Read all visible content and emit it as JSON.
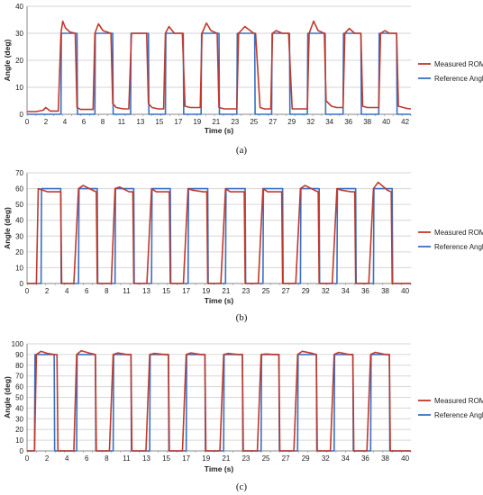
{
  "chart_data": [
    {
      "type": "line",
      "panel_label": "(a)",
      "xlabel": "Time (s)",
      "ylabel": "Angle (deg)",
      "xlim": [
        0,
        43
      ],
      "ylim": [
        0,
        40
      ],
      "x_ticks": [
        "0",
        "2",
        "4",
        "6",
        "8",
        "11",
        "13",
        "15",
        "17",
        "19",
        "21",
        "23",
        "25",
        "27",
        "29",
        "32",
        "34",
        "36",
        "38",
        "40",
        "42"
      ],
      "y_ticks": [
        "0",
        "10",
        "20",
        "30",
        "40"
      ],
      "grid": true,
      "legend_position": "right",
      "series": [
        {
          "name": "Measured ROM",
          "color": "#c0392b",
          "x": [
            0,
            1.0,
            1.8,
            2.1,
            2.6,
            3.5,
            3.8,
            4.0,
            4.3,
            4.8,
            5.4,
            5.6,
            6.0,
            6.5,
            7.4,
            7.6,
            8.0,
            8.5,
            9.4,
            9.6,
            10.0,
            10.8,
            11.4,
            11.7,
            12.2,
            13.4,
            13.6,
            14.0,
            14.7,
            15.3,
            15.5,
            15.9,
            16.5,
            17.4,
            17.7,
            18.3,
            19.4,
            19.6,
            20.1,
            20.6,
            21.3,
            21.5,
            22.1,
            22.6,
            23.5,
            23.7,
            24.4,
            25.4,
            25.6,
            26.1,
            26.6,
            27.3,
            27.5,
            27.9,
            28.6,
            29.3,
            29.7,
            30.2,
            31.4,
            31.6,
            32.1,
            32.6,
            33.3,
            33.5,
            34.1,
            34.7,
            35.4,
            35.6,
            36.1,
            36.7,
            37.4,
            37.6,
            38.1,
            38.7,
            39.4,
            39.6,
            40.1,
            40.6,
            41.4,
            41.6,
            42.5,
            43.0
          ],
          "y": [
            1,
            1,
            1.5,
            2.5,
            1.2,
            1.2,
            30,
            34.5,
            32,
            30.5,
            30,
            2.5,
            1.8,
            1.8,
            1.8,
            30,
            33.5,
            31,
            30,
            4,
            2.5,
            2,
            2,
            30,
            30,
            30,
            4,
            2.5,
            2,
            2,
            30,
            32.5,
            30,
            30,
            3,
            2.5,
            2.5,
            30,
            33.8,
            31,
            30,
            2.5,
            2,
            2,
            2,
            30,
            32.5,
            30,
            30,
            2.5,
            2,
            2,
            30,
            31,
            30,
            30,
            2,
            2,
            2,
            30,
            34.5,
            31,
            30,
            5,
            3,
            2.5,
            2.5,
            30,
            31.8,
            30,
            30,
            3,
            2.5,
            2.5,
            2.5,
            30,
            31,
            30,
            30,
            3,
            2.2,
            2
          ]
        },
        {
          "name": "Reference Angle",
          "color": "#3a6fc4",
          "x": [
            0,
            3.8,
            3.85,
            5.6,
            5.65,
            7.6,
            7.65,
            9.6,
            9.65,
            11.6,
            11.65,
            13.6,
            13.65,
            15.5,
            15.55,
            17.5,
            17.55,
            19.5,
            19.55,
            21.5,
            21.55,
            23.5,
            23.55,
            25.5,
            25.55,
            27.4,
            27.45,
            29.4,
            29.45,
            31.4,
            31.45,
            33.4,
            33.45,
            35.4,
            35.45,
            37.4,
            37.45,
            39.4,
            39.45,
            41.4,
            41.45,
            43.0
          ],
          "y": [
            0,
            0,
            30,
            30,
            0,
            0,
            30,
            30,
            0,
            0,
            30,
            30,
            0,
            0,
            30,
            30,
            0,
            0,
            30,
            30,
            0,
            0,
            30,
            30,
            0,
            0,
            30,
            30,
            0,
            0,
            30,
            30,
            0,
            0,
            30,
            30,
            0,
            0,
            30,
            30,
            0,
            0
          ]
        }
      ]
    },
    {
      "type": "line",
      "panel_label": "(b)",
      "xlabel": "Time (s)",
      "ylabel": "Angle (deg)",
      "xlim": [
        0,
        41
      ],
      "ylim": [
        0,
        70
      ],
      "x_ticks": [
        "0",
        "2",
        "4",
        "6",
        "8",
        "11",
        "13",
        "15",
        "17",
        "19",
        "21",
        "23",
        "25",
        "27",
        "29",
        "32",
        "34",
        "36",
        "38",
        "40"
      ],
      "y_ticks": [
        "0",
        "10",
        "20",
        "30",
        "40",
        "50",
        "60",
        "70"
      ],
      "grid": true,
      "legend_position": "right",
      "series": [
        {
          "name": "Measured ROM",
          "color": "#c0392b",
          "x": [
            0,
            1.0,
            1.2,
            1.7,
            2.2,
            3.0,
            3.6,
            3.7,
            5.0,
            5.5,
            6.0,
            7.0,
            7.4,
            7.5,
            9.0,
            9.4,
            9.9,
            10.9,
            11.3,
            11.4,
            12.8,
            13.3,
            13.8,
            14.8,
            15.2,
            15.3,
            16.7,
            17.2,
            17.7,
            18.8,
            19.2,
            19.3,
            20.7,
            21.2,
            21.7,
            22.8,
            23.2,
            23.3,
            24.7,
            25.2,
            25.7,
            26.8,
            27.2,
            27.3,
            28.7,
            29.2,
            29.7,
            30.7,
            31.1,
            31.2,
            32.6,
            33.1,
            33.6,
            34.6,
            35.0,
            35.1,
            36.5,
            37.0,
            37.5,
            38.5,
            38.9,
            39.0,
            40.4,
            41.0
          ],
          "y": [
            0,
            0,
            60,
            59,
            58,
            58,
            58,
            0,
            0,
            60,
            62,
            59,
            58,
            0,
            0,
            60,
            61,
            58,
            58,
            0,
            0,
            60,
            58,
            58,
            58,
            0,
            0,
            60,
            59,
            58,
            58,
            0,
            0,
            60,
            58,
            58,
            58,
            0,
            0,
            60,
            58,
            58,
            58,
            0,
            0,
            60,
            62,
            59,
            58,
            0,
            0,
            60,
            59,
            58,
            58,
            0,
            0,
            60,
            64,
            59,
            58,
            0,
            0,
            0
          ]
        },
        {
          "name": "Reference Angle",
          "color": "#3a6fc4",
          "x": [
            0,
            1.5,
            1.55,
            3.6,
            3.65,
            5.5,
            5.55,
            7.5,
            7.55,
            9.4,
            9.45,
            11.4,
            11.45,
            13.3,
            13.35,
            15.3,
            15.35,
            17.2,
            17.25,
            19.3,
            19.35,
            21.2,
            21.25,
            23.3,
            23.35,
            25.2,
            25.25,
            27.3,
            27.35,
            29.2,
            29.25,
            31.2,
            31.25,
            33.1,
            33.15,
            35.1,
            35.15,
            37.0,
            37.05,
            39.0,
            39.05,
            41.0
          ],
          "y": [
            0,
            0,
            60,
            60,
            0,
            0,
            60,
            60,
            0,
            0,
            60,
            60,
            0,
            0,
            60,
            60,
            0,
            0,
            60,
            60,
            0,
            0,
            60,
            60,
            0,
            0,
            60,
            60,
            0,
            0,
            60,
            60,
            0,
            0,
            60,
            60,
            0,
            0,
            60,
            60,
            0,
            0
          ]
        }
      ]
    },
    {
      "type": "line",
      "panel_label": "(c)",
      "xlabel": "Time (s)",
      "ylabel": "Angle (deg)",
      "xlim": [
        0,
        41
      ],
      "ylim": [
        0,
        100
      ],
      "x_ticks": [
        "0",
        "2",
        "4",
        "6",
        "8",
        "11",
        "13",
        "15",
        "17",
        "19",
        "21",
        "23",
        "25",
        "27",
        "29",
        "32",
        "34",
        "36",
        "38",
        "40"
      ],
      "y_ticks": [
        "0",
        "10",
        "20",
        "30",
        "40",
        "50",
        "60",
        "70",
        "80",
        "90",
        "100"
      ],
      "grid": true,
      "legend_position": "right",
      "series": [
        {
          "name": "Measured ROM",
          "color": "#c0392b",
          "x": [
            0,
            0.8,
            1.0,
            1.5,
            2.2,
            2.9,
            3.2,
            3.3,
            5.0,
            5.3,
            5.8,
            6.8,
            7.3,
            7.4,
            8.8,
            9.2,
            9.7,
            10.7,
            11.1,
            11.2,
            12.7,
            13.1,
            13.6,
            14.7,
            15.1,
            15.2,
            16.6,
            17.0,
            17.5,
            18.6,
            19.0,
            19.1,
            20.6,
            21.0,
            21.5,
            22.6,
            23.0,
            23.1,
            24.6,
            25.0,
            25.5,
            26.5,
            26.9,
            27.0,
            28.5,
            28.9,
            29.4,
            30.5,
            30.9,
            31.0,
            32.4,
            32.8,
            33.3,
            34.4,
            34.8,
            34.9,
            36.3,
            36.7,
            37.2,
            38.3,
            38.7,
            38.8,
            40.2,
            41.0
          ],
          "y": [
            0,
            0,
            90,
            93,
            91,
            90,
            90,
            0,
            0,
            90,
            93.5,
            91,
            90,
            0,
            0,
            90,
            91.5,
            90,
            90,
            0,
            0,
            90,
            91,
            90,
            90,
            0,
            0,
            90,
            91.5,
            90,
            90,
            0,
            0,
            90,
            91,
            90,
            90,
            0,
            0,
            90,
            90.5,
            90,
            90,
            0,
            0,
            90,
            93,
            91,
            90,
            0,
            0,
            90,
            92,
            90,
            90,
            0,
            0,
            90,
            92,
            90,
            90,
            0,
            0,
            0
          ]
        },
        {
          "name": "Reference Angle",
          "color": "#3a6fc4",
          "x": [
            0,
            0.8,
            0.85,
            2.9,
            2.95,
            5.3,
            5.35,
            7.3,
            7.35,
            9.2,
            9.25,
            11.1,
            11.15,
            13.1,
            13.15,
            15.1,
            15.15,
            17.0,
            17.05,
            19.0,
            19.05,
            21.0,
            21.05,
            23.0,
            23.05,
            25.0,
            25.05,
            26.9,
            26.95,
            28.9,
            28.95,
            30.9,
            30.95,
            32.8,
            32.85,
            34.8,
            34.85,
            36.7,
            36.75,
            38.7,
            38.75,
            41.0
          ],
          "y": [
            0,
            0,
            90,
            90,
            0,
            0,
            90,
            90,
            0,
            0,
            90,
            90,
            0,
            0,
            90,
            90,
            0,
            0,
            90,
            90,
            0,
            0,
            90,
            90,
            0,
            0,
            90,
            90,
            0,
            0,
            90,
            90,
            0,
            0,
            90,
            90,
            0,
            0,
            90,
            90,
            0,
            0
          ]
        }
      ]
    }
  ]
}
